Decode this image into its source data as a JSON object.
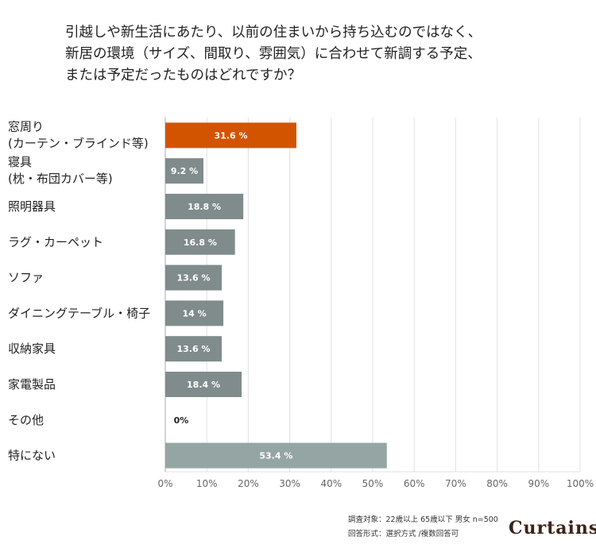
{
  "title": "引越しや新生活にあたり、以前の住まいから持ち込むのではなく、新居の環境（サイズ、間取り、雰囲気）に合わせて新調する予定、または予定だったものはどれですか？",
  "title_lines": [
    "引越しや新生活にあたり、以前の住まいから持ち込むのではなく、",
    "新居の環境（サイズ、間取り、雰囲気）に合わせて新調する予定、",
    "または予定だったものはどれですか？"
  ],
  "chart_data": {
    "type": "bar",
    "orientation": "horizontal",
    "categories": [
      [
        "窓周り",
        "(カーテン・ブラインド等)"
      ],
      [
        "寝具",
        "(枕・布団カバー等)"
      ],
      [
        "照明器具"
      ],
      [
        "ラグ・カーペット"
      ],
      [
        "ソファ"
      ],
      [
        "ダイニングテーブル・椅子"
      ],
      [
        "収納家具"
      ],
      [
        "家電製品"
      ],
      [
        "その他"
      ],
      [
        "特にない"
      ]
    ],
    "values": [
      31.6,
      9.2,
      18.8,
      16.8,
      13.6,
      14,
      13.6,
      18.4,
      0,
      53.4
    ],
    "data_labels": [
      "31.6 %",
      "9.2 %",
      "18.8 %",
      "16.8 %",
      "13.6 %",
      "14 %",
      "13.6 %",
      "18.4 %",
      "0%",
      "53.4 %"
    ],
    "colors": [
      "#d35400",
      "#7f8c8b",
      "#7f8c8b",
      "#7f8c8b",
      "#7f8c8b",
      "#7f8c8b",
      "#7f8c8b",
      "#7f8c8b",
      "#7f8c8b",
      "#95a5a3"
    ],
    "xlim": [
      0,
      100
    ],
    "xticks": [
      "0%",
      "10%",
      "20%",
      "30%",
      "40%",
      "50%",
      "60%",
      "70%",
      "80%",
      "90%",
      "100%"
    ],
    "grid": true
  },
  "footnote": [
    "調査対象：22歳以上 65歳以下 男女 n=500",
    "回答形式：選択方式 /複数回答可"
  ],
  "logo": "Curtains"
}
